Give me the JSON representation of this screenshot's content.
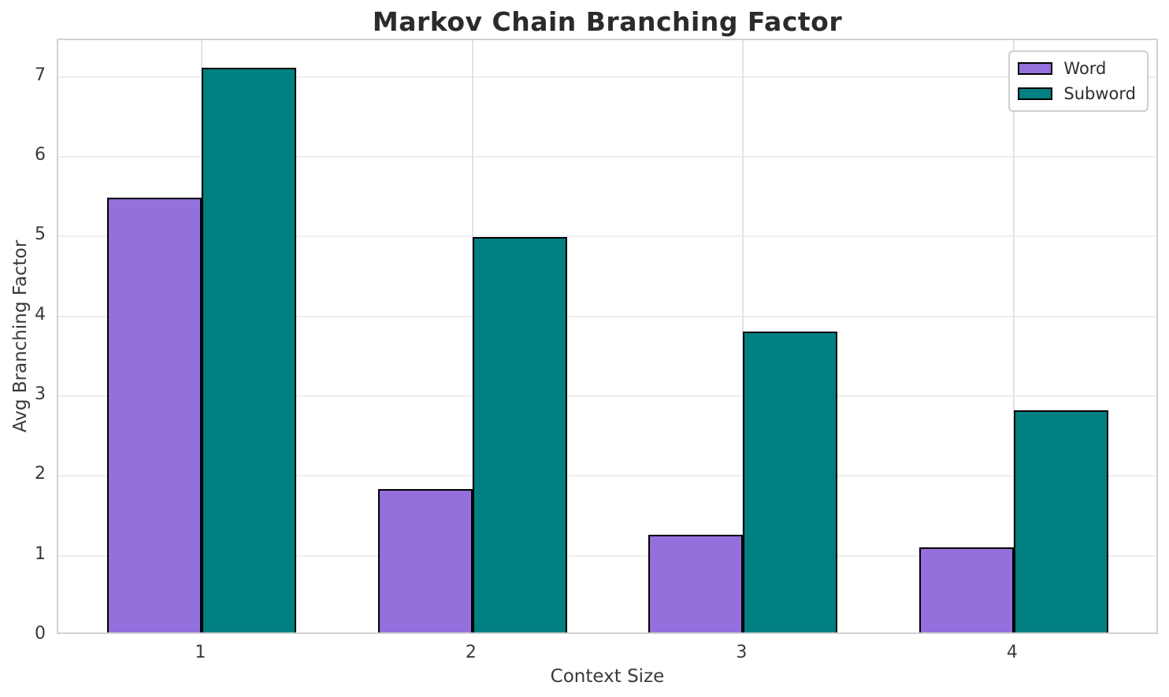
{
  "chart_data": {
    "type": "bar",
    "title": "Markov Chain Branching Factor",
    "xlabel": "Context Size",
    "ylabel": "Avg Branching Factor",
    "categories": [
      "1",
      "2",
      "3",
      "4"
    ],
    "series": [
      {
        "name": "Word",
        "color": "#9370DB",
        "values": [
          5.45,
          1.8,
          1.22,
          1.07
        ]
      },
      {
        "name": "Subword",
        "color": "#008080",
        "values": [
          7.08,
          4.95,
          3.77,
          2.78
        ]
      }
    ],
    "ylim": [
      0,
      7.46
    ],
    "yticks": [
      0,
      1,
      2,
      3,
      4,
      5,
      6,
      7
    ],
    "edge_color": "#000000",
    "grid": true,
    "legend_position": "upper right"
  }
}
